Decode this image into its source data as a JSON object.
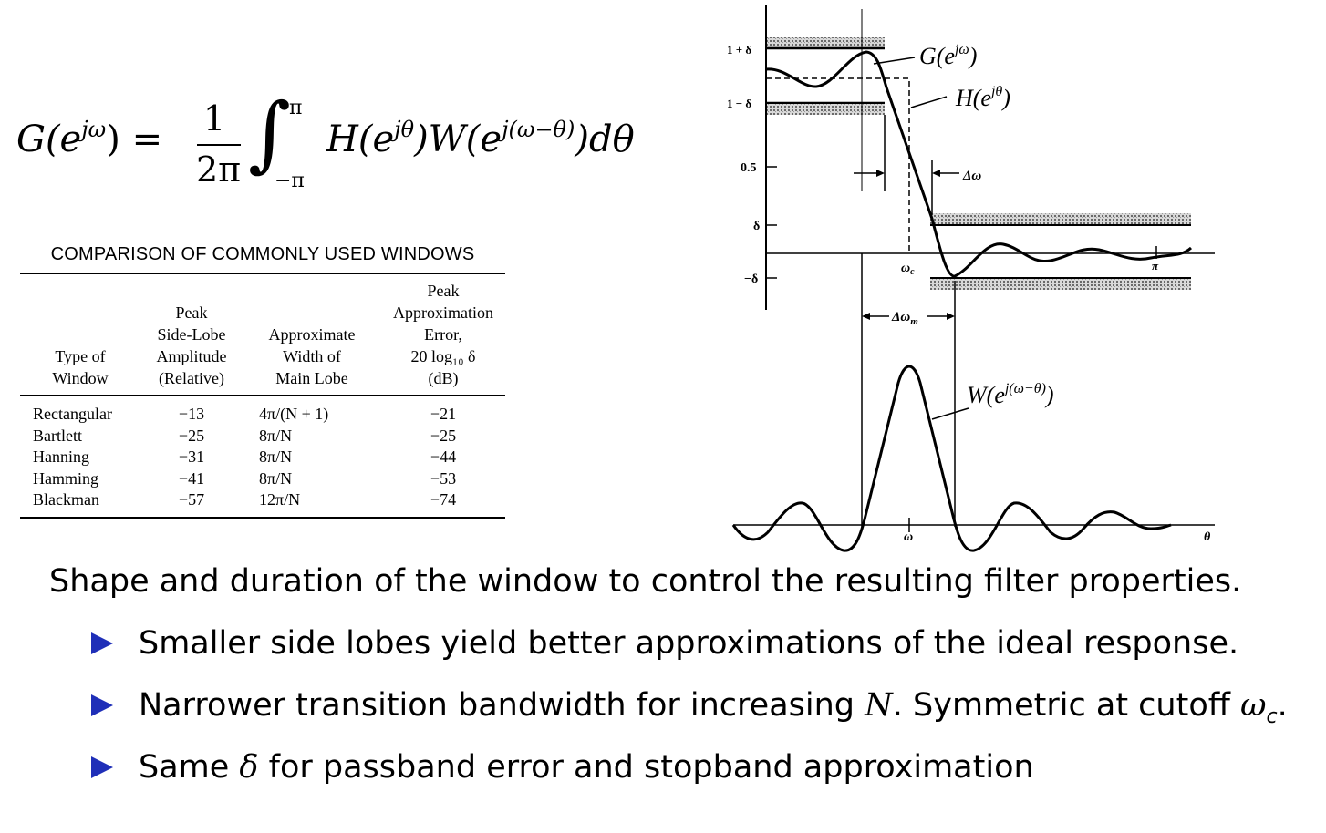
{
  "formula": {
    "lhs": "G(e",
    "lhs_sup": "jω",
    "lhs_close": ") =",
    "num": "1",
    "den": "2π",
    "int_upper": "π",
    "int_lower": "−π",
    "h_part": "H(e",
    "h_sup": "jθ",
    "w_part": ")W(e",
    "w_sup": "j(ω−θ)",
    "tail": ")dθ"
  },
  "table": {
    "title": "COMPARISON OF COMMONLY USED WINDOWS",
    "headers": {
      "type": [
        "Type of",
        "Window"
      ],
      "side": [
        "Peak",
        "Side-Lobe",
        "Amplitude",
        "(Relative)"
      ],
      "width": [
        "Approximate",
        "Width of",
        "Main Lobe"
      ],
      "err": [
        "Peak",
        "Approximation",
        "Error,",
        "20 log₁₀ δ",
        "(dB)"
      ]
    },
    "rows": [
      {
        "name": "Rectangular",
        "side": "−13",
        "width": "4π/(N + 1)",
        "err": "−21"
      },
      {
        "name": "Bartlett",
        "side": "−25",
        "width": "8π/N",
        "err": "−25"
      },
      {
        "name": "Hanning",
        "side": "−31",
        "width": "8π/N",
        "err": "−44"
      },
      {
        "name": "Hamming",
        "side": "−41",
        "width": "8π/N",
        "err": "−53"
      },
      {
        "name": "Blackman",
        "side": "−57",
        "width": "12π/N",
        "err": "−74"
      }
    ]
  },
  "diagram": {
    "y_labels": [
      "1 + δ",
      "1 − δ",
      "0.5",
      "δ",
      "−δ"
    ],
    "g_label": "G(e",
    "g_sup": "jω",
    "h_label": "H(e",
    "h_sup": "jθ",
    "w_label": "W(e",
    "w_sup": "j(ω−θ)",
    "delta_omega": "Δω",
    "delta_omega_m": "Δω",
    "delta_omega_m_sub": "m",
    "omega_c": "ω",
    "omega_c_sub": "c",
    "pi": "π",
    "omega": "ω",
    "theta": "θ"
  },
  "text": {
    "intro": "Shape and duration of the window to control the resulting filter properties.",
    "bullet1": "Smaller side lobes yield better approximations of the ideal response.",
    "bullet2_a": "Narrower transition bandwidth for increasing ",
    "bullet2_n": "N",
    "bullet2_b": ". Symmetric at cutoff ",
    "bullet2_w": "ω",
    "bullet2_c": "c",
    "bullet2_end": ".",
    "bullet3_a": "Same ",
    "bullet3_d": "δ",
    "bullet3_b": " for passband error and stopband approximation"
  },
  "colors": {
    "bullet": "#1f2fb8",
    "text": "#000000"
  },
  "icons": {
    "bullet": "triangle-right-icon"
  }
}
